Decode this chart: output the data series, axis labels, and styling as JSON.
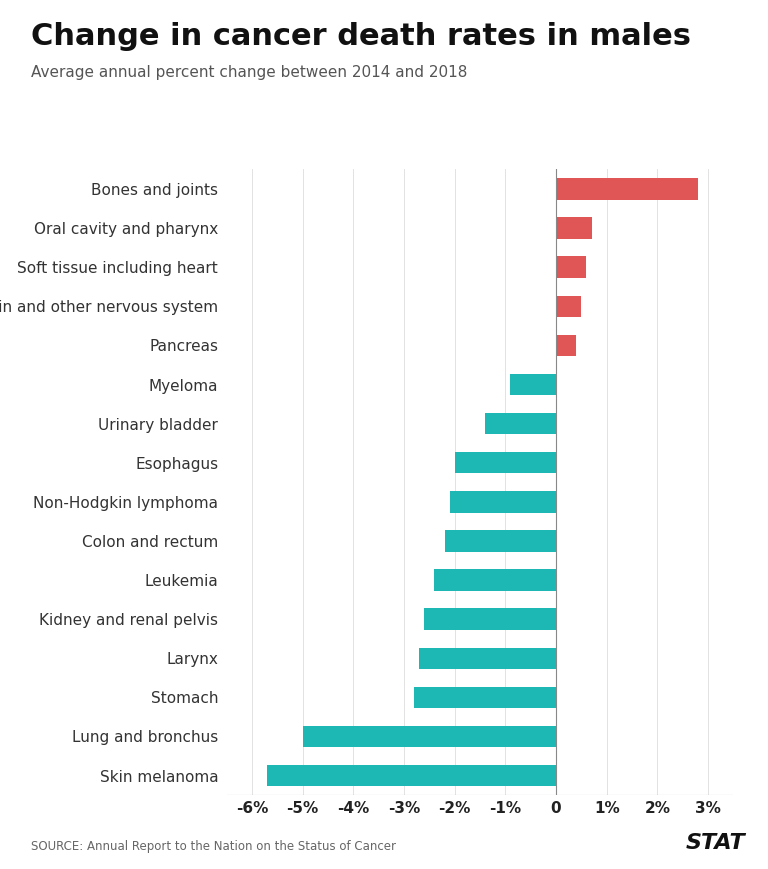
{
  "title": "Change in cancer death rates in males",
  "subtitle": "Average annual percent change between 2014 and 2018",
  "source": "SOURCE: Annual Report to the Nation on the Status of Cancer",
  "branding": "STAT",
  "categories": [
    "Skin melanoma",
    "Lung and bronchus",
    "Stomach",
    "Larynx",
    "Kidney and renal pelvis",
    "Leukemia",
    "Colon and rectum",
    "Non-Hodgkin lymphoma",
    "Esophagus",
    "Urinary bladder",
    "Myeloma",
    "Pancreas",
    "Brain and other nervous system",
    "Soft tissue including heart",
    "Oral cavity and pharynx",
    "Bones and joints"
  ],
  "values": [
    -5.7,
    -5.0,
    -2.8,
    -2.7,
    -2.6,
    -2.4,
    -2.2,
    -2.1,
    -2.0,
    -1.4,
    -0.9,
    0.4,
    0.5,
    0.6,
    0.7,
    2.8
  ],
  "positive_color": "#e05555",
  "negative_color": "#1db8b4",
  "background_color": "#ffffff",
  "xlim": [
    -6.5,
    3.5
  ],
  "xticks": [
    -6,
    -5,
    -4,
    -3,
    -2,
    -1,
    0,
    1,
    2,
    3
  ],
  "xtick_labels": [
    "-6%",
    "-5%",
    "-4%",
    "-3%",
    "-2%",
    "-1%",
    "0",
    "1%",
    "2%",
    "3%"
  ],
  "title_fontsize": 22,
  "subtitle_fontsize": 11,
  "ytick_fontsize": 11,
  "xtick_fontsize": 11,
  "bar_height": 0.55
}
